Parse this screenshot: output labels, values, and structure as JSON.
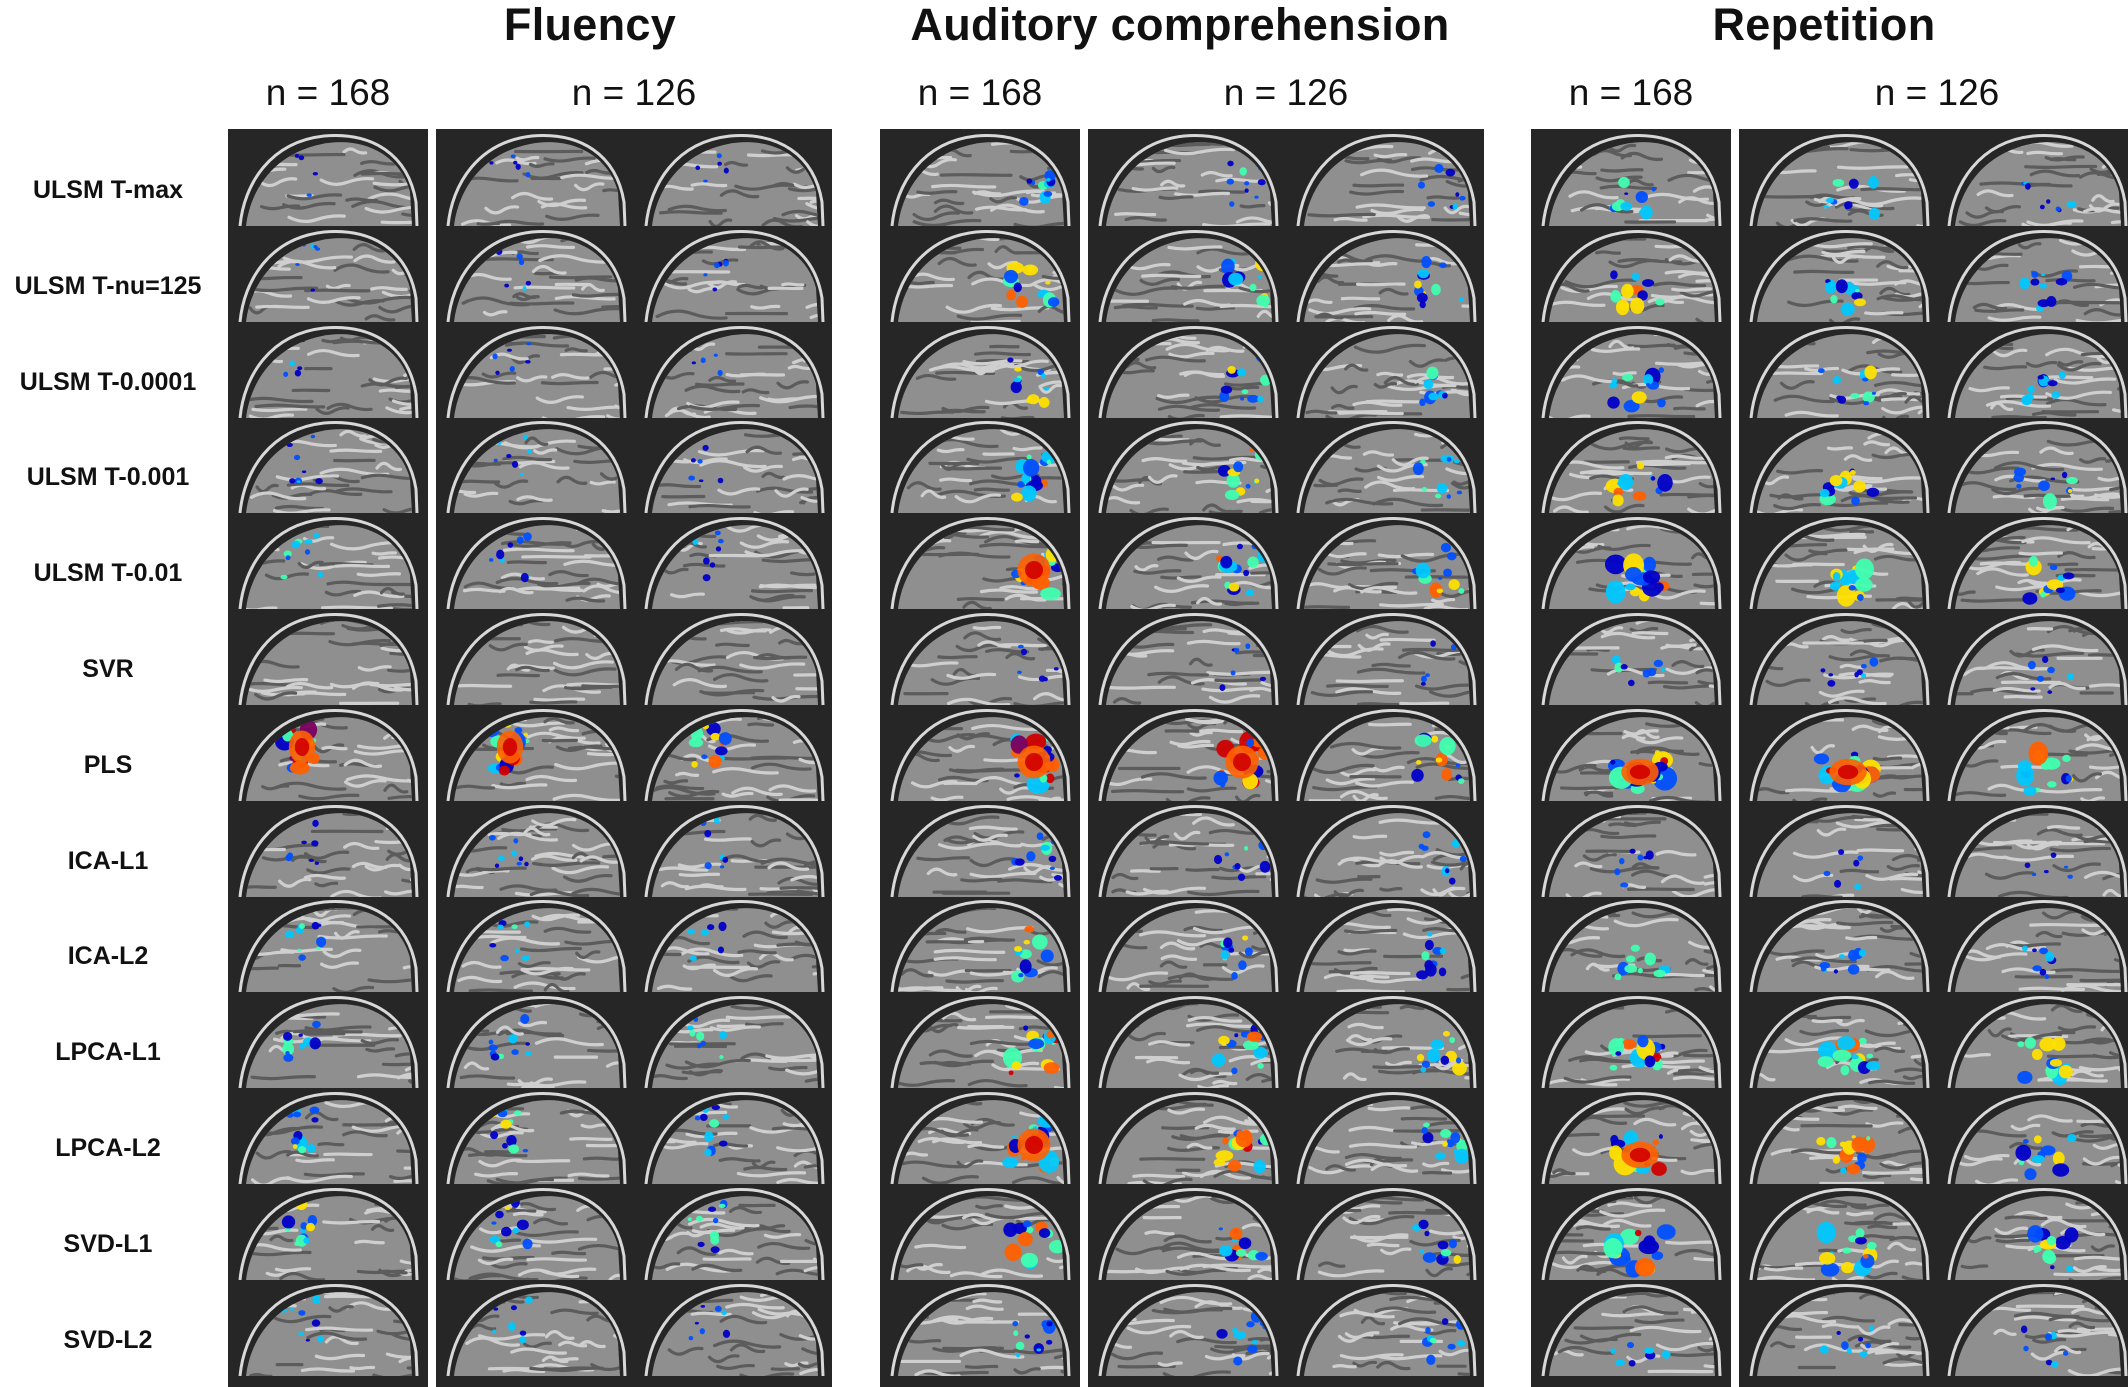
{
  "tasks": [
    {
      "title": "Fluency",
      "groups": [
        {
          "n": "n = 168",
          "slices": 1
        },
        {
          "n": "n = 126",
          "slices": 2
        }
      ]
    },
    {
      "title": "Auditory comprehension",
      "groups": [
        {
          "n": "n = 168",
          "slices": 1
        },
        {
          "n": "n = 126",
          "slices": 2
        }
      ]
    },
    {
      "title": "Repetition",
      "groups": [
        {
          "n": "n = 168",
          "slices": 1
        },
        {
          "n": "n = 126",
          "slices": 2
        }
      ]
    }
  ],
  "methods": [
    "ULSM T-max",
    "ULSM T-nu=125",
    "ULSM T-0.0001",
    "ULSM T-0.001",
    "ULSM T-0.01",
    "SVR",
    "PLS",
    "ICA-L1",
    "ICA-L2",
    "LPCA-L1",
    "LPCA-L2",
    "SVD-L1",
    "SVD-L2"
  ],
  "colors": {
    "panel_background": "#262626",
    "brain_gray": "#9a9a9a",
    "colormap": [
      "#0000c8",
      "#0050ff",
      "#00c8ff",
      "#40ffb0",
      "#ffe000",
      "#ff6000",
      "#d00000",
      "#7a0060"
    ]
  }
}
